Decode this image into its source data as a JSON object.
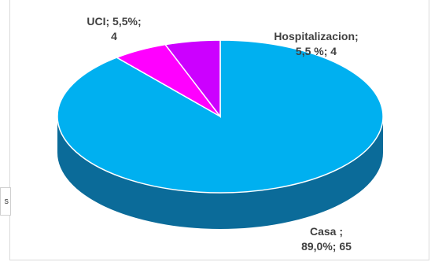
{
  "chart_data": {
    "type": "pie",
    "style": "3d",
    "slices": [
      {
        "category": "Casa",
        "percent": "89,0%",
        "value": 65,
        "color": "#00b0f0",
        "side_color": "#0b6b99",
        "label_lines": [
          "Casa  ;",
          "89,0%; 65"
        ]
      },
      {
        "category": "Hospitalizacion",
        "percent": "5,5%",
        "value": 4,
        "color": "#ff00ff",
        "side_color": "#b000b0",
        "label_lines": [
          "Hospitalizacion;",
          "5,5 %; 4"
        ]
      },
      {
        "category": "UCI",
        "percent": "5,5%",
        "value": 4,
        "color": "#cc00ff",
        "side_color": "#8a00b0",
        "label_lines": [
          "UCI; 5,5%;",
          "4"
        ]
      }
    ],
    "legend": "none"
  },
  "side_stub": {
    "text": "s"
  }
}
